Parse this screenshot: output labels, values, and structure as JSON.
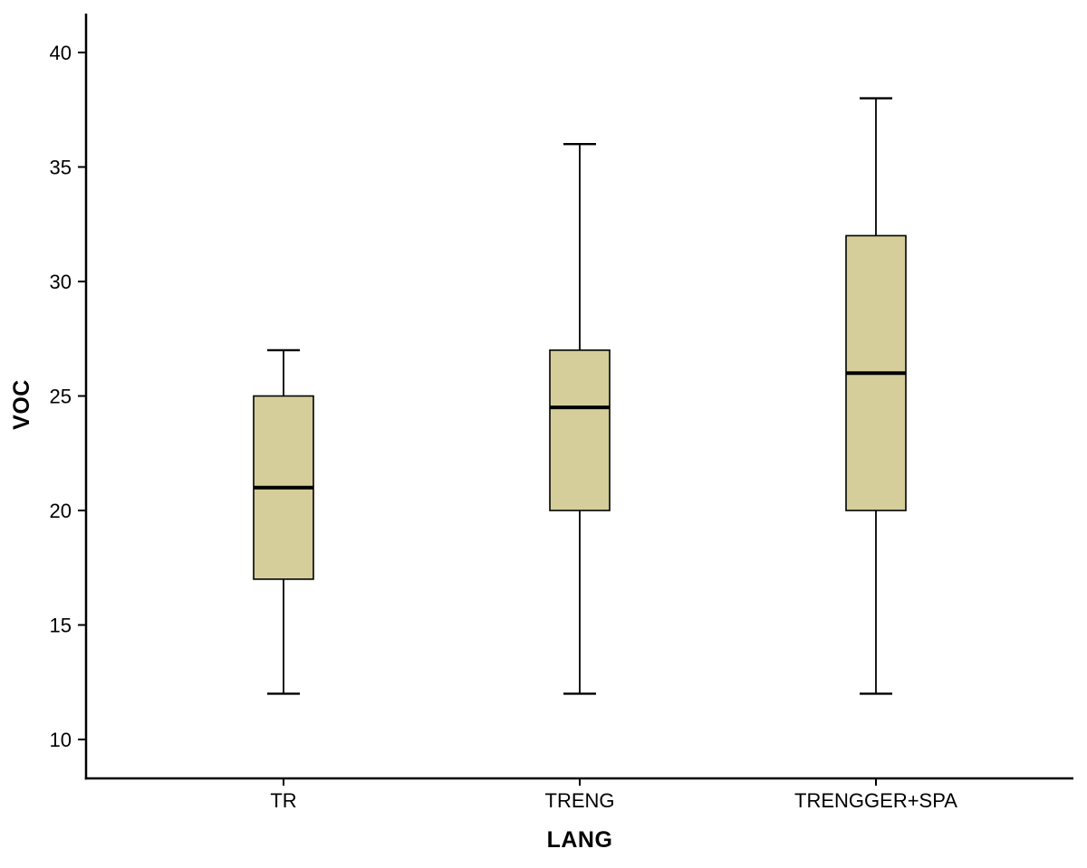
{
  "chart_data": {
    "type": "boxplot",
    "title": "",
    "xlabel": "LANG",
    "ylabel": "VOC",
    "categories": [
      "TR",
      "TRENG",
      "TRENGGER+SPA"
    ],
    "y_ticks": [
      10,
      15,
      20,
      25,
      30,
      35,
      40
    ],
    "ylim": [
      8.3,
      41.7
    ],
    "series": [
      {
        "category": "TR",
        "whisker_low": 12,
        "q1": 17,
        "median": 21,
        "q3": 25,
        "whisker_high": 27
      },
      {
        "category": "TRENG",
        "whisker_low": 12,
        "q1": 20,
        "median": 24.5,
        "q3": 27,
        "whisker_high": 36
      },
      {
        "category": "TRENGGER+SPA",
        "whisker_low": 12,
        "q1": 20,
        "median": 26,
        "q3": 32,
        "whisker_high": 38
      }
    ],
    "legend": "none",
    "grid": "off",
    "colors": {
      "box_fill": "#d5ce9a",
      "box_stroke": "#000000",
      "axis": "#000000",
      "background": "#ffffff"
    }
  }
}
